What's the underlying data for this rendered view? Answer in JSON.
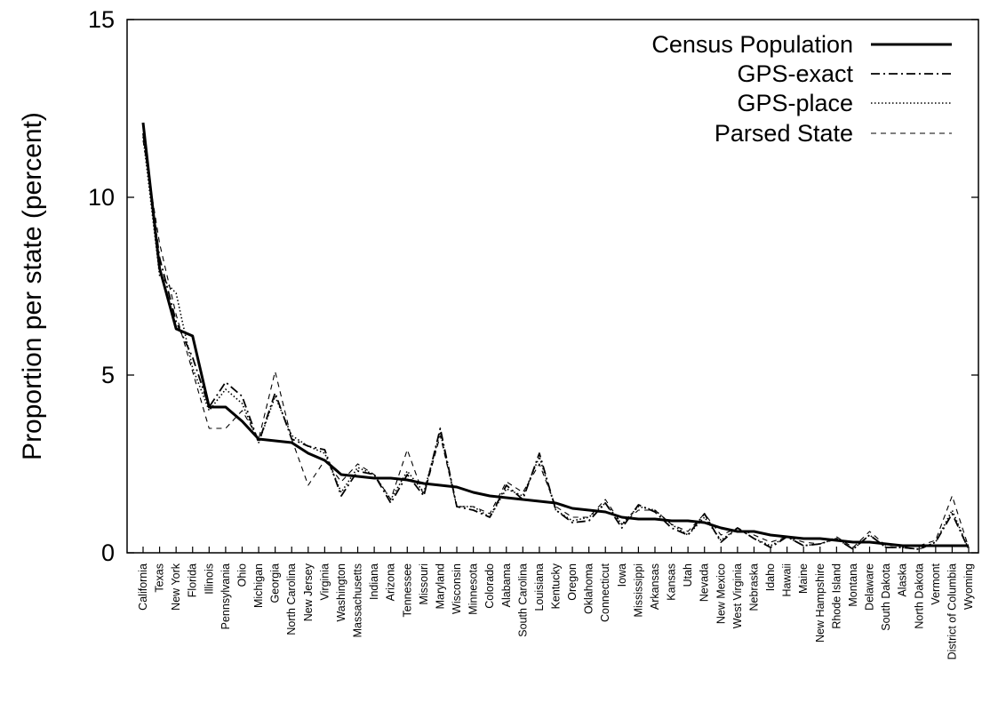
{
  "chart_data": {
    "type": "line",
    "title": "",
    "xlabel": "",
    "ylabel": "Proportion per state (percent)",
    "ylim": [
      0,
      15
    ],
    "yticks": [
      0,
      5,
      10,
      15
    ],
    "grid": false,
    "legend_position": "top-right",
    "categories": [
      "California",
      "Texas",
      "New York",
      "Florida",
      "Illinois",
      "Pennsylvania",
      "Ohio",
      "Michigan",
      "Georgia",
      "North Carolina",
      "New Jersey",
      "Virginia",
      "Washington",
      "Massachusetts",
      "Indiana",
      "Arizona",
      "Tennessee",
      "Missouri",
      "Maryland",
      "Wisconsin",
      "Minnesota",
      "Colorado",
      "Alabama",
      "South Carolina",
      "Louisiana",
      "Kentucky",
      "Oregon",
      "Oklahoma",
      "Connecticut",
      "Iowa",
      "Mississippi",
      "Arkansas",
      "Kansas",
      "Utah",
      "Nevada",
      "New Mexico",
      "West Virginia",
      "Nebraska",
      "Idaho",
      "Hawaii",
      "Maine",
      "New Hampshire",
      "Rhode Island",
      "Montana",
      "Delaware",
      "South Dakota",
      "Alaska",
      "North Dakota",
      "Vermont",
      "District of Columbia",
      "Wyoming"
    ],
    "series": [
      {
        "name": "Census Population",
        "style": "solid",
        "values": [
          12.1,
          8.0,
          6.3,
          6.1,
          4.1,
          4.1,
          3.7,
          3.2,
          3.15,
          3.1,
          2.8,
          2.6,
          2.2,
          2.15,
          2.1,
          2.1,
          2.05,
          1.95,
          1.9,
          1.85,
          1.7,
          1.6,
          1.55,
          1.5,
          1.45,
          1.4,
          1.25,
          1.2,
          1.15,
          1.0,
          0.95,
          0.95,
          0.9,
          0.9,
          0.85,
          0.7,
          0.6,
          0.6,
          0.5,
          0.45,
          0.4,
          0.4,
          0.35,
          0.3,
          0.3,
          0.25,
          0.2,
          0.2,
          0.2,
          0.2,
          0.2
        ]
      },
      {
        "name": "GPS-exact",
        "style": "dash-dot",
        "values": [
          11.8,
          8.3,
          6.5,
          5.5,
          4.1,
          4.8,
          4.4,
          3.1,
          4.5,
          3.2,
          3.0,
          2.9,
          1.6,
          2.3,
          2.2,
          1.4,
          2.2,
          1.6,
          3.5,
          1.3,
          1.2,
          1.0,
          1.9,
          1.5,
          2.8,
          1.2,
          0.85,
          0.9,
          1.4,
          0.7,
          1.35,
          1.15,
          0.7,
          0.5,
          1.1,
          0.3,
          0.7,
          0.4,
          0.15,
          0.45,
          0.2,
          0.25,
          0.4,
          0.1,
          0.5,
          0.15,
          0.15,
          0.1,
          0.3,
          1.1,
          0.1
        ]
      },
      {
        "name": "GPS-place",
        "style": "dotted",
        "values": [
          11.7,
          7.8,
          7.3,
          5.2,
          4.0,
          4.6,
          4.2,
          3.1,
          4.4,
          3.3,
          3.0,
          2.8,
          1.7,
          2.4,
          2.2,
          1.5,
          2.3,
          1.7,
          3.4,
          1.3,
          1.3,
          1.0,
          1.8,
          1.6,
          2.7,
          1.2,
          0.9,
          1.0,
          1.4,
          0.8,
          1.3,
          1.2,
          0.8,
          0.5,
          1.0,
          0.35,
          0.7,
          0.4,
          0.2,
          0.45,
          0.2,
          0.25,
          0.4,
          0.1,
          0.5,
          0.15,
          0.15,
          0.1,
          0.3,
          1.2,
          0.1
        ]
      },
      {
        "name": "Parsed State",
        "style": "dashed",
        "values": [
          11.6,
          8.7,
          6.7,
          5.1,
          3.5,
          3.5,
          4.0,
          3.2,
          5.1,
          3.2,
          1.9,
          2.6,
          2.0,
          2.5,
          2.2,
          1.5,
          2.9,
          1.6,
          3.3,
          1.3,
          1.3,
          1.1,
          2.0,
          1.7,
          2.5,
          1.3,
          1.0,
          1.0,
          1.5,
          0.8,
          1.2,
          1.2,
          0.8,
          0.6,
          1.1,
          0.5,
          0.7,
          0.5,
          0.3,
          0.45,
          0.3,
          0.25,
          0.45,
          0.15,
          0.6,
          0.2,
          0.2,
          0.2,
          0.35,
          1.6,
          0.15
        ]
      }
    ]
  }
}
